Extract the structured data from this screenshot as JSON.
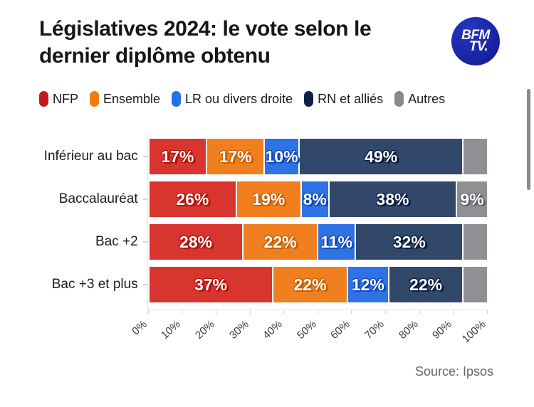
{
  "header": {
    "title_line1": "Législatives 2024: le vote selon le",
    "title_line2": "dernier diplôme obtenu",
    "logo_line1": "BFM",
    "logo_line2": "TV.",
    "logo_color": "#1a26a8"
  },
  "chart_data": {
    "type": "bar",
    "orientation": "horizontal-stacked",
    "title": "Législatives 2024: le vote selon le dernier diplôme obtenu",
    "categories": [
      "Inférieur au bac",
      "Baccalauréat",
      "Bac +2",
      "Bac +3 et plus"
    ],
    "series": [
      {
        "name": "NFP",
        "color": "#d8352e",
        "legend_color": "#c51a1b",
        "shadow": "#b5120e",
        "values": [
          17,
          26,
          28,
          37
        ],
        "labels": [
          "17%",
          "26%",
          "28%",
          "37%"
        ]
      },
      {
        "name": "Ensemble",
        "color": "#f0801f",
        "legend_color": "#ee7d0a",
        "shadow": "#c95f00",
        "values": [
          17,
          19,
          22,
          22
        ],
        "labels": [
          "17%",
          "19%",
          "22%",
          "22%"
        ]
      },
      {
        "name": "LR ou divers droite",
        "color": "#2e72e6",
        "legend_color": "#2470e8",
        "shadow": "#1149b8",
        "values": [
          10,
          8,
          11,
          12
        ],
        "labels": [
          "10%",
          "8%",
          "11%",
          "12%"
        ]
      },
      {
        "name": "RN et alliés",
        "color": "#32486b",
        "legend_color": "#0c2148",
        "shadow": "#0a1c40",
        "values": [
          49,
          38,
          32,
          22
        ],
        "labels": [
          "49%",
          "38%",
          "32%",
          "22%"
        ]
      },
      {
        "name": "Autres",
        "color": "#8f9094",
        "legend_color": "#88898d",
        "shadow": "#63646a",
        "values": [
          7,
          9,
          7,
          7
        ],
        "labels": [
          "",
          "9%",
          "",
          ""
        ]
      }
    ],
    "x_ticks": [
      "0%",
      "10%",
      "20%",
      "30%",
      "40%",
      "50%",
      "60%",
      "70%",
      "80%",
      "90%",
      "100%"
    ],
    "xlim": [
      0,
      100
    ],
    "grid": false,
    "legend_position": "top"
  },
  "footer": {
    "source": "Source: Ipsos"
  }
}
